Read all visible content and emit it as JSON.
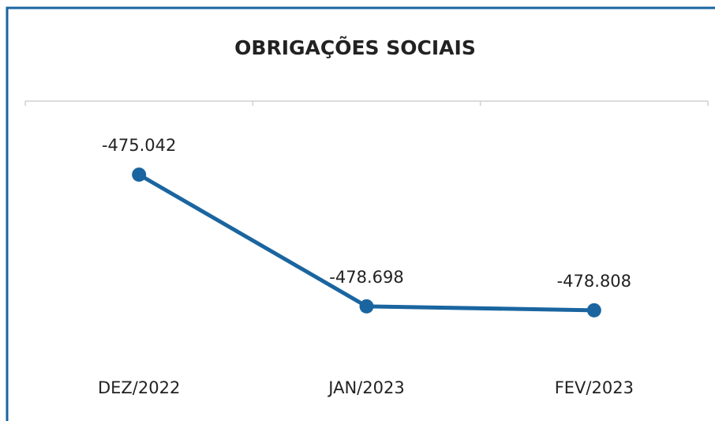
{
  "chart_data": {
    "type": "line",
    "title": "OBRIGAÇÕES SOCIAIS",
    "categories": [
      "DEZ/2022",
      "JAN/2023",
      "FEV/2023"
    ],
    "series": [
      {
        "name": "OBRIGAÇÕES SOCIAIS",
        "color": "#1a65a0",
        "values": [
          -475042,
          -478698,
          -478808
        ],
        "value_labels": [
          "-475.042",
          "-478.698",
          "-478.808"
        ]
      }
    ],
    "ylim": [
      -480500,
      -473000
    ]
  }
}
